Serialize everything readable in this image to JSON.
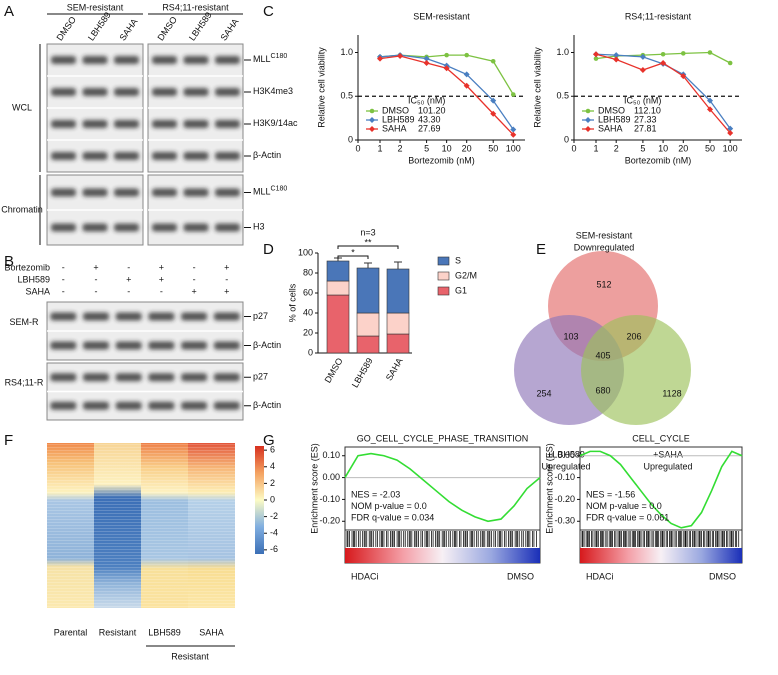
{
  "panel_labels": [
    "A",
    "B",
    "C",
    "D",
    "E",
    "F",
    "G"
  ],
  "figure_a": {
    "groups": [
      "SEM-resistant",
      "RS4;11-resistant"
    ],
    "lanes": [
      "DMSO",
      "LBH589",
      "SAHA"
    ],
    "sections": [
      {
        "name": "WCL",
        "rows": [
          {
            "text": "MLL",
            "sup": "C180"
          },
          {
            "text": "H3K4me3"
          },
          {
            "text": "H3K9/14ac"
          },
          {
            "text": "β-Actin"
          }
        ]
      },
      {
        "name": "Chromatin",
        "rows": [
          {
            "text": "MLL",
            "sup": "C180"
          },
          {
            "text": "H3"
          }
        ]
      }
    ]
  },
  "figure_b": {
    "treatments": [
      {
        "name": "Bortezomib",
        "signs": [
          "-",
          "+",
          "-",
          "+",
          "-",
          "+"
        ]
      },
      {
        "name": "LBH589",
        "signs": [
          "-",
          "-",
          "+",
          "+",
          "-",
          "-"
        ]
      },
      {
        "name": "SAHA",
        "signs": [
          "-",
          "-",
          "-",
          "-",
          "+",
          "+"
        ]
      }
    ],
    "sections": [
      {
        "name": "SEM-R",
        "rows": [
          "p27",
          "β-Actin"
        ]
      },
      {
        "name": "RS4;11-R",
        "rows": [
          "p27",
          "β-Actin"
        ]
      }
    ]
  },
  "chart_data": [
    {
      "type": "line",
      "title": "SEM-resistant",
      "x_label": "Bortezomib (nM)",
      "y_label": "Relative cell viability",
      "xscale": "log",
      "x": [
        1,
        2,
        5,
        10,
        20,
        50,
        100
      ],
      "xlim": [
        0,
        150
      ],
      "xticks": [
        0,
        1,
        2,
        5,
        10,
        20,
        50,
        100
      ],
      "ylim": [
        0,
        1.2
      ],
      "yticks": [
        0,
        0.5,
        {
          "value": 1,
          "label": "1.0"
        }
      ],
      "reference_line": 0.5,
      "legend_title": "IC₅₀ (nM)",
      "series": [
        {
          "name": "DMSO",
          "color": "#7dc242",
          "marker": "circle",
          "ic50": "101.20",
          "values": [
            0.95,
            0.97,
            0.95,
            0.97,
            0.97,
            0.9,
            0.52
          ]
        },
        {
          "name": "LBH589",
          "color": "#4a7fc1",
          "marker": "diamond",
          "ic50": "43.30",
          "values": [
            0.95,
            0.97,
            0.93,
            0.85,
            0.75,
            0.45,
            0.12
          ]
        },
        {
          "name": "SAHA",
          "color": "#e8322b",
          "marker": "diamond",
          "ic50": "27.69",
          "values": [
            0.93,
            0.96,
            0.88,
            0.82,
            0.62,
            0.3,
            0.06
          ]
        }
      ]
    },
    {
      "type": "line",
      "title": "RS4;11-resistant",
      "x_label": "Bortezomib (nM)",
      "y_label": "Relative cell viability",
      "xscale": "log",
      "x": [
        1,
        2,
        5,
        10,
        20,
        50,
        100
      ],
      "xlim": [
        0,
        150
      ],
      "xticks": [
        0,
        1,
        2,
        5,
        10,
        20,
        50,
        100
      ],
      "ylim": [
        0,
        1.2
      ],
      "yticks": [
        0,
        0.5,
        {
          "value": 1,
          "label": "1.0"
        }
      ],
      "reference_line": 0.5,
      "legend_title": "IC₅₀ (nM)",
      "series": [
        {
          "name": "DMSO",
          "color": "#7dc242",
          "marker": "circle",
          "ic50": "112.10",
          "values": [
            0.93,
            0.96,
            0.97,
            0.98,
            0.99,
            1.0,
            0.88
          ]
        },
        {
          "name": "LBH589",
          "color": "#4a7fc1",
          "marker": "diamond",
          "ic50": "27.33",
          "values": [
            0.98,
            0.97,
            0.95,
            0.87,
            0.75,
            0.45,
            0.13
          ]
        },
        {
          "name": "SAHA",
          "color": "#e8322b",
          "marker": "diamond",
          "ic50": "27.81",
          "values": [
            0.98,
            0.92,
            0.8,
            0.88,
            0.73,
            0.35,
            0.08
          ]
        }
      ]
    },
    {
      "type": "bar",
      "stacked": true,
      "y_label": "% of cells",
      "categories": [
        "DMSO",
        "LBH589",
        "SAHA"
      ],
      "ylim": [
        0,
        100
      ],
      "yticks": [
        0,
        20,
        40,
        60,
        80,
        100
      ],
      "legend": "right",
      "note": "n=3",
      "significance": [
        {
          "pair": [
            "DMSO",
            "LBH589"
          ],
          "label": "*"
        },
        {
          "pair": [
            "DMSO",
            "SAHA"
          ],
          "label": "**"
        }
      ],
      "series": [
        {
          "name": "G1",
          "color": "#e8636b",
          "values": [
            58,
            17,
            19
          ],
          "errors": [
            2,
            6,
            10
          ]
        },
        {
          "name": "G2/M",
          "color": "#fcd2c9",
          "values": [
            14,
            23,
            21
          ],
          "errors": [
            2,
            10,
            3
          ]
        },
        {
          "name": "S",
          "color": "#4a76b8",
          "values": [
            20,
            45,
            44
          ],
          "errors": [
            3,
            5,
            7
          ]
        }
      ]
    },
    {
      "type": "enrichment",
      "title": "GO_CELL_CYCLE_PHASE_TRANSITION",
      "y_label": "Enrichment score (ES)",
      "color": "#33dd33",
      "ylim": [
        -0.24,
        0.14
      ],
      "yticks": [
        {
          "value": 0.1,
          "label": "0.10"
        },
        {
          "value": 0,
          "label": "0.00"
        },
        {
          "value": -0.1,
          "label": "-0.10"
        },
        {
          "value": -0.2,
          "label": "-0.20"
        }
      ],
      "zero_line": true,
      "stats": [
        "NES = -2.03",
        "NOM p-value = 0.0",
        "FDR q-value = 0.034"
      ],
      "x_labels": [
        "HDACi",
        "DMSO"
      ],
      "values": [
        0,
        0.1,
        0.11,
        0.1,
        0.08,
        0.04,
        -0.01,
        -0.06,
        -0.11,
        -0.15,
        -0.18,
        -0.2,
        -0.19,
        -0.13,
        -0.05,
        0
      ]
    },
    {
      "type": "enrichment",
      "title": "CELL_CYCLE",
      "y_label": "Enrichment score (ES)",
      "color": "#33dd33",
      "ylim": [
        -0.34,
        0.04
      ],
      "yticks": [
        {
          "value": 0,
          "label": "0.00"
        },
        {
          "value": -0.1,
          "label": "-0.10"
        },
        {
          "value": -0.2,
          "label": "-0.20"
        },
        {
          "value": -0.3,
          "label": "-0.30"
        }
      ],
      "zero_line": true,
      "stats": [
        "NES = -1.56",
        "NOM p-value = 0.0",
        "FDR q-value = 0.061"
      ],
      "x_labels": [
        "HDACi",
        "DMSO"
      ],
      "values": [
        0,
        0.02,
        0.02,
        0,
        -0.04,
        -0.1,
        -0.16,
        -0.22,
        -0.27,
        -0.31,
        -0.33,
        -0.32,
        -0.26,
        -0.16,
        -0.05,
        0.02,
        0
      ]
    }
  ],
  "venn": {
    "sets": [
      {
        "name": "SEM-resistant",
        "subtitle": "Downregulated"
      },
      {
        "name": "+LBH589",
        "subtitle": "Upregulated"
      },
      {
        "name": "+SAHA",
        "subtitle": "Upregulated"
      }
    ],
    "counts": {
      "sem_only": 512,
      "sem_lbh": 103,
      "sem_saha": 206,
      "all": 405,
      "lbh_only": 254,
      "lbh_saha": 680,
      "saha_only": 1128
    }
  },
  "heatmap": {
    "columns": [
      "Parental",
      "Resistant",
      "LBH589",
      "SAHA"
    ],
    "group_label": "Resistant",
    "colorbar_lim": [
      -6.5,
      6.5
    ],
    "colorbar_ticks": [
      6,
      4,
      2,
      0,
      -2,
      -4,
      -6
    ]
  }
}
